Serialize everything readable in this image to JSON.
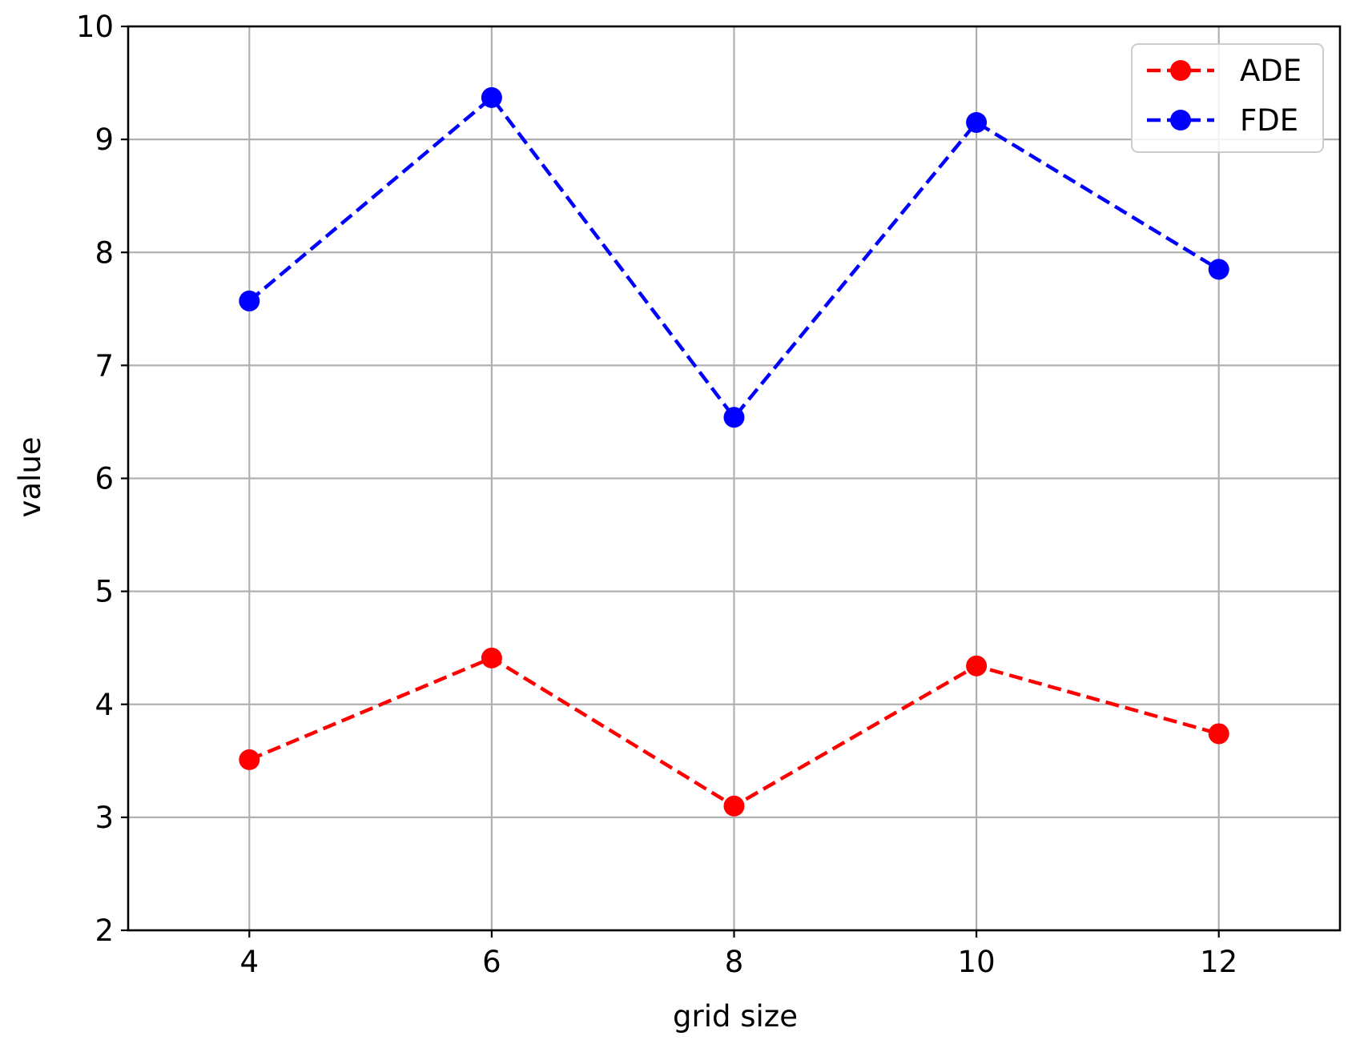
{
  "chart_data": {
    "type": "line",
    "title": "",
    "xlabel": "grid size",
    "ylabel": "value",
    "x": [
      4,
      6,
      8,
      10,
      12
    ],
    "xlim": [
      3,
      13
    ],
    "ylim": [
      2,
      10
    ],
    "x_ticks": [
      "4",
      "6",
      "8",
      "10",
      "12"
    ],
    "y_ticks": [
      "2",
      "3",
      "4",
      "5",
      "6",
      "7",
      "8",
      "9",
      "10"
    ],
    "grid": true,
    "legend_position": "top-right",
    "series": [
      {
        "name": "ADE",
        "color": "#ff0000",
        "line_style": "dashed",
        "marker": "circle",
        "values": [
          3.51,
          4.41,
          3.1,
          4.34,
          3.74
        ]
      },
      {
        "name": "FDE",
        "color": "#0000ff",
        "line_style": "dashed",
        "marker": "circle",
        "values": [
          7.57,
          9.37,
          6.54,
          9.15,
          7.85
        ]
      }
    ]
  }
}
